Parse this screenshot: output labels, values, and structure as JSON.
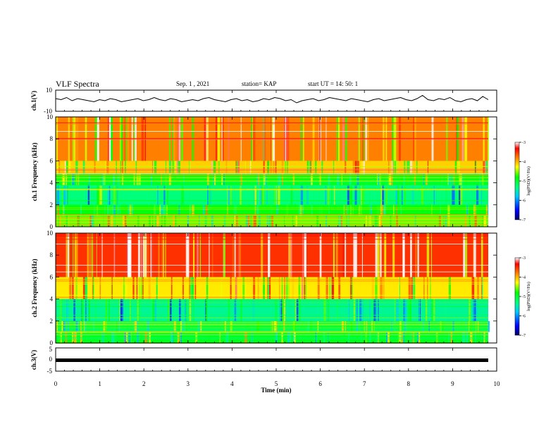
{
  "header": {
    "title": "VLF Spectra",
    "date": "Sep. 1  , 2021",
    "station": "station= KAP",
    "start": "start  UT =   14: 50: 1"
  },
  "colors": {
    "axes": "#000000",
    "waveform": "#000000",
    "colormap": [
      "#000066",
      "#0000ff",
      "#00c8ff",
      "#00ff80",
      "#00ff00",
      "#ffff00",
      "#ff8000",
      "#ff0000",
      "#ffffff"
    ]
  },
  "chart_data": [
    {
      "type": "line",
      "panel": "ch1-waveform",
      "ylabel": "ch.1(V)",
      "ylim": [
        -10,
        10
      ],
      "ytick_labels": [
        "10",
        "-10"
      ],
      "xlim": [
        0,
        10
      ],
      "series": [
        {
          "values": [
            2,
            1,
            3,
            0,
            2,
            1,
            0,
            -1,
            1,
            0,
            2,
            1,
            -1,
            0,
            1,
            2,
            0,
            1,
            3,
            1,
            0,
            2,
            1,
            -1,
            0,
            1,
            0,
            2,
            3,
            1,
            0,
            -1,
            1,
            2,
            0,
            1,
            -1,
            0,
            2,
            1,
            3,
            2,
            0,
            1,
            -2,
            0,
            1,
            2,
            0,
            1,
            3,
            2,
            1,
            0,
            2,
            1,
            0,
            -1,
            1,
            2,
            0,
            1,
            2,
            3,
            1,
            0,
            2,
            5,
            1,
            0,
            2,
            1,
            3,
            0,
            -1,
            1,
            2,
            0,
            4,
            1
          ]
        }
      ]
    },
    {
      "type": "heatmap",
      "panel": "ch1-spectrogram",
      "ylabel": "ch.1 Frequency (kHz)",
      "ylim": [
        0,
        10
      ],
      "ytick_labels": [
        "0",
        "2",
        "4",
        "6",
        "8",
        "10"
      ],
      "xlim": [
        0,
        10
      ],
      "colorbar": {
        "label": "log(PSD)(V²/Hz)",
        "range": [
          -7,
          -3
        ],
        "ticks": [
          "-3",
          "-4",
          "-5",
          "-6",
          "-7"
        ]
      },
      "band_log_psd_by_khz": [
        {
          "f": [
            0,
            1
          ],
          "level": -4.6
        },
        {
          "f": [
            1,
            2
          ],
          "level": -4.8
        },
        {
          "f": [
            2,
            3.8
          ],
          "level": -5.3
        },
        {
          "f": [
            3.8,
            4.8
          ],
          "level": -4.9
        },
        {
          "f": [
            4.8,
            6
          ],
          "level": -4.1
        },
        {
          "f": [
            6,
            10
          ],
          "level": -3.8
        }
      ]
    },
    {
      "type": "heatmap",
      "panel": "ch2-spectrogram",
      "ylabel": "ch.2 Frequency (kHz)",
      "ylim": [
        0,
        10
      ],
      "ytick_labels": [
        "0",
        "2",
        "4",
        "6",
        "8",
        "10"
      ],
      "xlim": [
        0,
        10
      ],
      "colorbar": {
        "label": "log(PSD)(V²/Hz)",
        "range": [
          -7,
          -3
        ],
        "ticks": [
          "-3",
          "-4",
          "-5",
          "-6",
          "-7"
        ]
      },
      "band_log_psd_by_khz": [
        {
          "f": [
            0,
            1
          ],
          "level": -4.9
        },
        {
          "f": [
            1,
            2
          ],
          "level": -5.1
        },
        {
          "f": [
            2,
            4
          ],
          "level": -5.4
        },
        {
          "f": [
            4,
            6
          ],
          "level": -4.2
        },
        {
          "f": [
            6,
            10
          ],
          "level": -3.5
        }
      ]
    },
    {
      "type": "line",
      "panel": "ch3-waveform",
      "ylabel": "ch.3(V)",
      "ylim": [
        -5,
        5
      ],
      "ytick_labels": [
        "5",
        "0",
        "-5"
      ],
      "xlabel": "Time  (min)",
      "xlim": [
        0,
        10
      ],
      "xtick_labels": [
        "0",
        "1",
        "2",
        "3",
        "4",
        "5",
        "6",
        "7",
        "8",
        "9",
        "10"
      ],
      "series": [
        {
          "values": [
            -0.3,
            -0.3
          ]
        }
      ]
    }
  ]
}
